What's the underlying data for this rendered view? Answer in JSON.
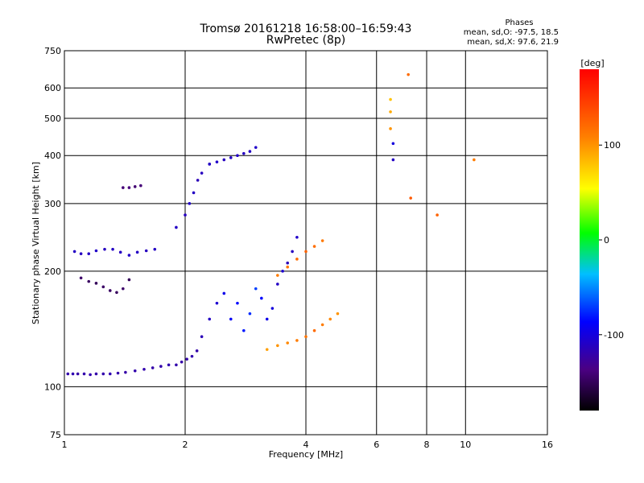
{
  "chart_data": {
    "type": "scatter",
    "title": "Tromsø 20161218 16:58:00–16:59:43",
    "subtitle": "RwPretec (8p)",
    "xlabel": "Frequency [MHz]",
    "ylabel": "Stationary phase Virtual Height [km]",
    "x_scale": "log",
    "y_scale": "log",
    "xlim": [
      1,
      16
    ],
    "ylim": [
      75,
      750
    ],
    "x_ticks": [
      1,
      2,
      4,
      6,
      8,
      10,
      16
    ],
    "y_ticks": [
      75,
      100,
      200,
      300,
      400,
      500,
      600,
      750
    ],
    "grid": true,
    "phases": {
      "title": "Phases",
      "line1": "mean, sd,O: -97.5, 18.5",
      "line2": "mean, sd,X:  97.6, 21.9"
    },
    "colorbar": {
      "label": "[deg]",
      "ticks": [
        100,
        0,
        -100
      ],
      "range": [
        -180,
        180
      ]
    },
    "series": [
      {
        "x": [
          1.02,
          1.05,
          1.08,
          1.12,
          1.16,
          1.2,
          1.25,
          1.3,
          1.36,
          1.42,
          1.5,
          1.58,
          1.66,
          1.74,
          1.82,
          1.9,
          1.96,
          2.02,
          2.08,
          2.14
        ],
        "y": [
          108,
          108,
          108,
          108,
          107.5,
          108,
          108,
          108,
          108.5,
          109,
          110,
          111,
          112,
          113,
          114,
          114,
          116,
          118,
          120,
          124
        ],
        "phase": [
          -120,
          -118,
          -122,
          -120,
          -119,
          -121,
          -120,
          -118,
          -120,
          -122,
          -120,
          -119,
          -121,
          -120,
          -118,
          -120,
          -122,
          -120,
          -119,
          -121
        ]
      },
      {
        "x": [
          1.06,
          1.1,
          1.15,
          1.2,
          1.26,
          1.32,
          1.38,
          1.45,
          1.52,
          1.6,
          1.68
        ],
        "y": [
          225,
          222,
          222,
          226,
          228,
          228,
          224,
          220,
          224,
          226,
          228
        ],
        "phase": [
          -110,
          -112,
          -110,
          -108,
          -112,
          -110,
          -111,
          -109,
          -110,
          -112,
          -110
        ]
      },
      {
        "x": [
          1.1,
          1.15,
          1.2,
          1.25,
          1.3,
          1.35,
          1.4,
          1.45
        ],
        "y": [
          192,
          188,
          186,
          182,
          178,
          176,
          180,
          190
        ],
        "phase": [
          -145,
          -148,
          -150,
          -146,
          -147,
          -149,
          -145,
          -150
        ]
      },
      {
        "x": [
          1.4,
          1.45,
          1.5,
          1.55
        ],
        "y": [
          330,
          330,
          332,
          334
        ],
        "phase": [
          -140,
          -138,
          -142,
          -140
        ]
      },
      {
        "x": [
          1.9,
          2.0,
          2.05,
          2.1,
          2.15,
          2.2,
          2.3
        ],
        "y": [
          260,
          280,
          300,
          320,
          345,
          360,
          380
        ],
        "phase": [
          -110,
          -112,
          -108,
          -110,
          -115,
          -112,
          -110
        ]
      },
      {
        "x": [
          2.3,
          2.4,
          2.5,
          2.6,
          2.7,
          2.8,
          2.9,
          3.0
        ],
        "y": [
          380,
          385,
          390,
          395,
          400,
          405,
          410,
          420
        ],
        "phase": [
          -110,
          -108,
          -112,
          -110,
          -109,
          -111,
          -110,
          -108
        ]
      },
      {
        "x": [
          2.2,
          2.3,
          2.4,
          2.5,
          2.6,
          2.7,
          2.8,
          2.9,
          3.0,
          3.1,
          3.2,
          3.3,
          3.4,
          3.5,
          3.6,
          3.7,
          3.8
        ],
        "y": [
          135,
          150,
          165,
          175,
          150,
          165,
          140,
          155,
          180,
          170,
          150,
          160,
          185,
          200,
          210,
          225,
          245
        ],
        "phase": [
          -115,
          -110,
          -105,
          -95,
          -90,
          -85,
          -80,
          -75,
          -70,
          -85,
          -95,
          -100,
          -110,
          -105,
          -115,
          -112,
          -108
        ]
      },
      {
        "x": [
          3.2,
          3.4,
          3.6,
          3.8,
          4.0,
          4.2,
          4.4,
          4.6,
          4.8
        ],
        "y": [
          125,
          128,
          130,
          132,
          135,
          140,
          145,
          150,
          155
        ],
        "phase": [
          95,
          100,
          105,
          110,
          115,
          120,
          110,
          105,
          100
        ]
      },
      {
        "x": [
          3.4,
          3.6,
          3.8,
          4.0,
          4.2,
          4.4
        ],
        "y": [
          195,
          205,
          215,
          225,
          232,
          240
        ],
        "phase": [
          110,
          115,
          120,
          125,
          118,
          112
        ]
      },
      {
        "x": [
          6.5,
          6.5,
          6.5,
          6.6,
          6.6,
          7.2,
          7.3,
          8.5,
          10.5
        ],
        "y": [
          560,
          520,
          470,
          430,
          390,
          650,
          310,
          280,
          390
        ],
        "phase": [
          80,
          90,
          100,
          -100,
          -110,
          120,
          130,
          125,
          110
        ]
      }
    ]
  }
}
